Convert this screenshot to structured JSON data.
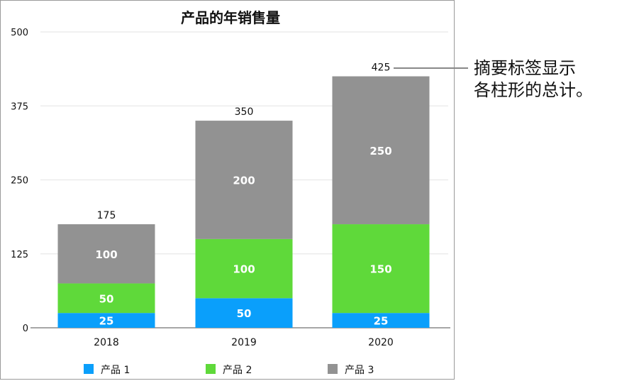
{
  "chart_data": {
    "type": "bar",
    "stacked": true,
    "title": "产品的年销售量",
    "categories": [
      "2018",
      "2019",
      "2020"
    ],
    "series": [
      {
        "name": "产品 1",
        "color": "#0a9ffb",
        "values": [
          25,
          50,
          25
        ]
      },
      {
        "name": "产品 2",
        "color": "#5fd93a",
        "values": [
          50,
          100,
          150
        ]
      },
      {
        "name": "产品 3",
        "color": "#929292",
        "values": [
          100,
          200,
          250
        ]
      }
    ],
    "totals": [
      175,
      350,
      425
    ],
    "ylim": [
      0,
      500
    ],
    "yticks": [
      0,
      125,
      250,
      375,
      500
    ],
    "grid": true,
    "legend_position": "bottom"
  },
  "annotation": {
    "line1": "摘要标签显示",
    "line2": "各柱形的总计。"
  }
}
